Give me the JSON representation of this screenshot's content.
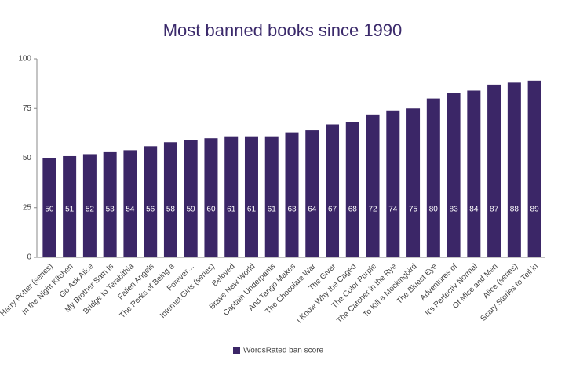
{
  "chart_data": {
    "type": "bar",
    "title": "Most banned books since 1990",
    "categories": [
      "Harry Potter (series)",
      "In the Night Kitchen",
      "Go Ask Alice",
      "My Brother Sam Is",
      "Bridge to Terabithia",
      "Fallen Angels",
      "The Perks of Being a",
      "Forever…",
      "Internet Girls (series)",
      "Beloved",
      "Brave New World",
      "Captain Underpants",
      "And Tango Makes",
      "The Chocolate War",
      "The Giver",
      "I Know Why the Caged",
      "The Color Purple",
      "The Catcher in the Rye",
      "To Kill a Mockingbird",
      "The Bluest Eye",
      "Adventures of",
      "It's Perfectly Normal",
      "Of Mice and Men",
      "Alice (series)",
      "Scary Stories to Tell in"
    ],
    "series": [
      {
        "name": "WordsRated ban score",
        "color": "#3b2667",
        "values": [
          50,
          51,
          52,
          53,
          54,
          56,
          58,
          59,
          60,
          61,
          61,
          61,
          63,
          64,
          67,
          68,
          72,
          74,
          75,
          80,
          83,
          84,
          87,
          88,
          89
        ]
      }
    ],
    "ylim": [
      0,
      100
    ],
    "yticks": [
      0,
      25,
      50,
      75,
      100
    ],
    "grid": false,
    "legend": "bottom"
  }
}
